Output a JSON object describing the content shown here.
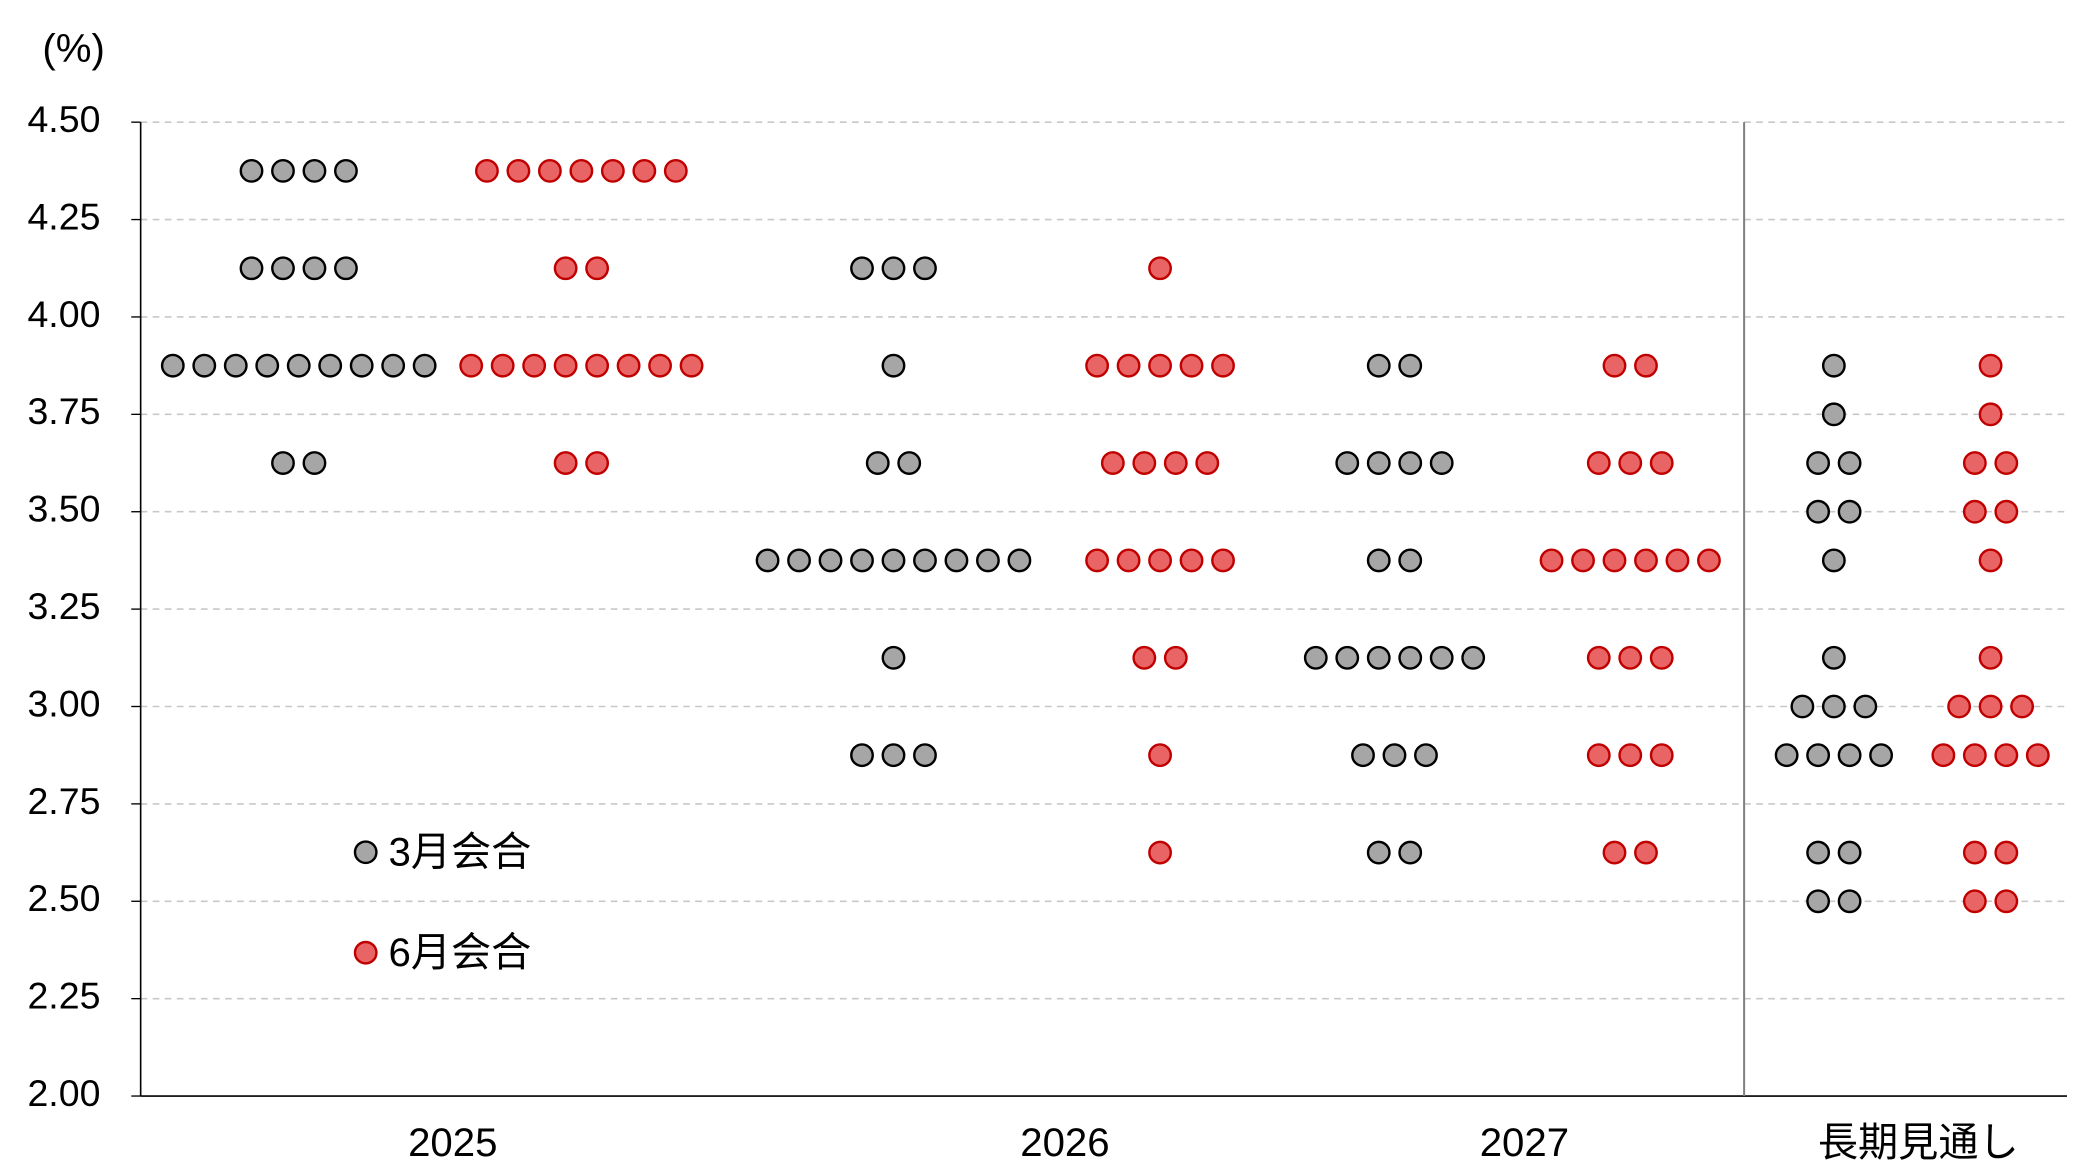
{
  "chart_data": {
    "type": "dot",
    "y_unit_label": "(%)",
    "categories": [
      "2025",
      "2026",
      "2027",
      "長期見通し"
    ],
    "ylim": [
      2.0,
      4.5
    ],
    "yticks": [
      {
        "value": 2.0,
        "label": "2.00"
      },
      {
        "value": 2.25,
        "label": "2.25"
      },
      {
        "value": 2.5,
        "label": "2.50"
      },
      {
        "value": 2.75,
        "label": "2.75"
      },
      {
        "value": 3.0,
        "label": "3.00"
      },
      {
        "value": 3.25,
        "label": "3.25"
      },
      {
        "value": 3.5,
        "label": "3.50"
      },
      {
        "value": 3.75,
        "label": "3.75"
      },
      {
        "value": 4.0,
        "label": "4.00"
      },
      {
        "value": 4.25,
        "label": "4.25"
      },
      {
        "value": 4.5,
        "label": "4.50"
      }
    ],
    "grid": true,
    "series": [
      {
        "name": "3月会合",
        "color": "#a6a6a6",
        "stroke": "#000000",
        "values": [
          [
            [
              4.375,
              4
            ],
            [
              4.125,
              4
            ],
            [
              3.875,
              9
            ],
            [
              3.625,
              2
            ]
          ],
          [
            [
              4.125,
              3
            ],
            [
              3.875,
              1
            ],
            [
              3.625,
              2
            ],
            [
              3.375,
              9
            ],
            [
              3.125,
              1
            ],
            [
              2.875,
              3
            ]
          ],
          [
            [
              3.875,
              2
            ],
            [
              3.625,
              4
            ],
            [
              3.375,
              2
            ],
            [
              3.125,
              6
            ],
            [
              2.875,
              3
            ],
            [
              2.625,
              2
            ]
          ],
          [
            [
              3.875,
              1
            ],
            [
              3.75,
              1
            ],
            [
              3.625,
              2
            ],
            [
              3.5,
              2
            ],
            [
              3.375,
              1
            ],
            [
              3.125,
              1
            ],
            [
              3.0,
              3
            ],
            [
              2.875,
              4
            ],
            [
              2.625,
              2
            ],
            [
              2.5,
              2
            ]
          ]
        ]
      },
      {
        "name": "6月会合",
        "color": "#e96464",
        "stroke": "#c00000",
        "values": [
          [
            [
              4.375,
              7
            ],
            [
              4.125,
              2
            ],
            [
              3.875,
              8
            ],
            [
              3.625,
              2
            ]
          ],
          [
            [
              4.125,
              1
            ],
            [
              3.875,
              5
            ],
            [
              3.625,
              4
            ],
            [
              3.375,
              5
            ],
            [
              3.125,
              2
            ],
            [
              2.875,
              1
            ],
            [
              2.625,
              1
            ]
          ],
          [
            [
              3.875,
              2
            ],
            [
              3.625,
              3
            ],
            [
              3.375,
              6
            ],
            [
              3.125,
              3
            ],
            [
              2.875,
              3
            ],
            [
              2.625,
              2
            ]
          ],
          [
            [
              3.875,
              1
            ],
            [
              3.75,
              1
            ],
            [
              3.625,
              2
            ],
            [
              3.5,
              2
            ],
            [
              3.375,
              1
            ],
            [
              3.125,
              1
            ],
            [
              3.0,
              3
            ],
            [
              2.875,
              4
            ],
            [
              2.625,
              2
            ],
            [
              2.5,
              2
            ]
          ]
        ]
      }
    ]
  }
}
